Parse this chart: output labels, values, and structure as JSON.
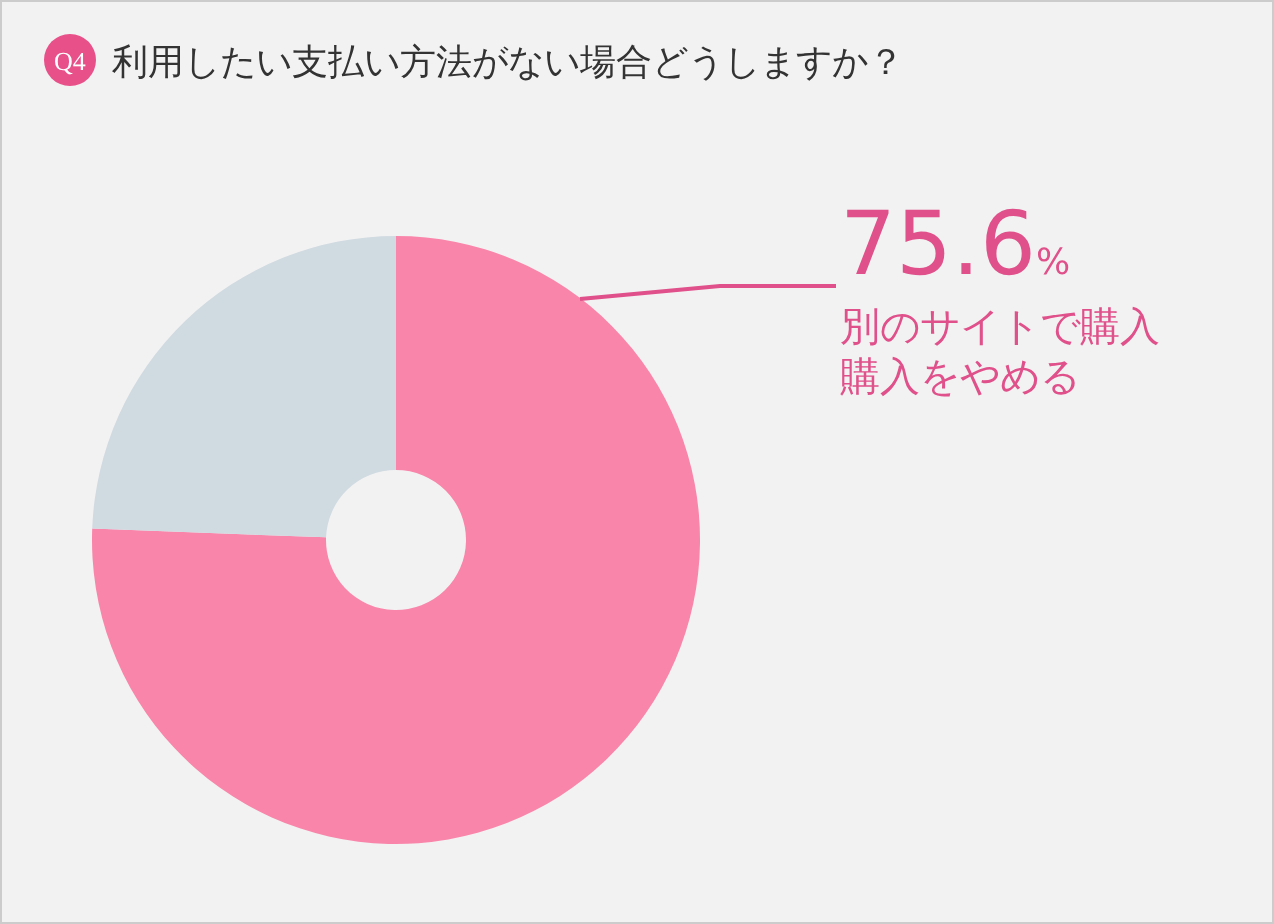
{
  "chart_data": {
    "type": "donut",
    "title": "利用したい支払い方法がない場合どうしますか？",
    "annotations": [
      "Q4"
    ],
    "categories": [
      "別のサイトで購入購入をやめる",
      null
    ],
    "values": [
      75.6,
      24.4
    ],
    "colors": [
      "#f985aa",
      "#d0dae1"
    ],
    "value_labels": [
      "75.6%",
      null
    ]
  }
}
